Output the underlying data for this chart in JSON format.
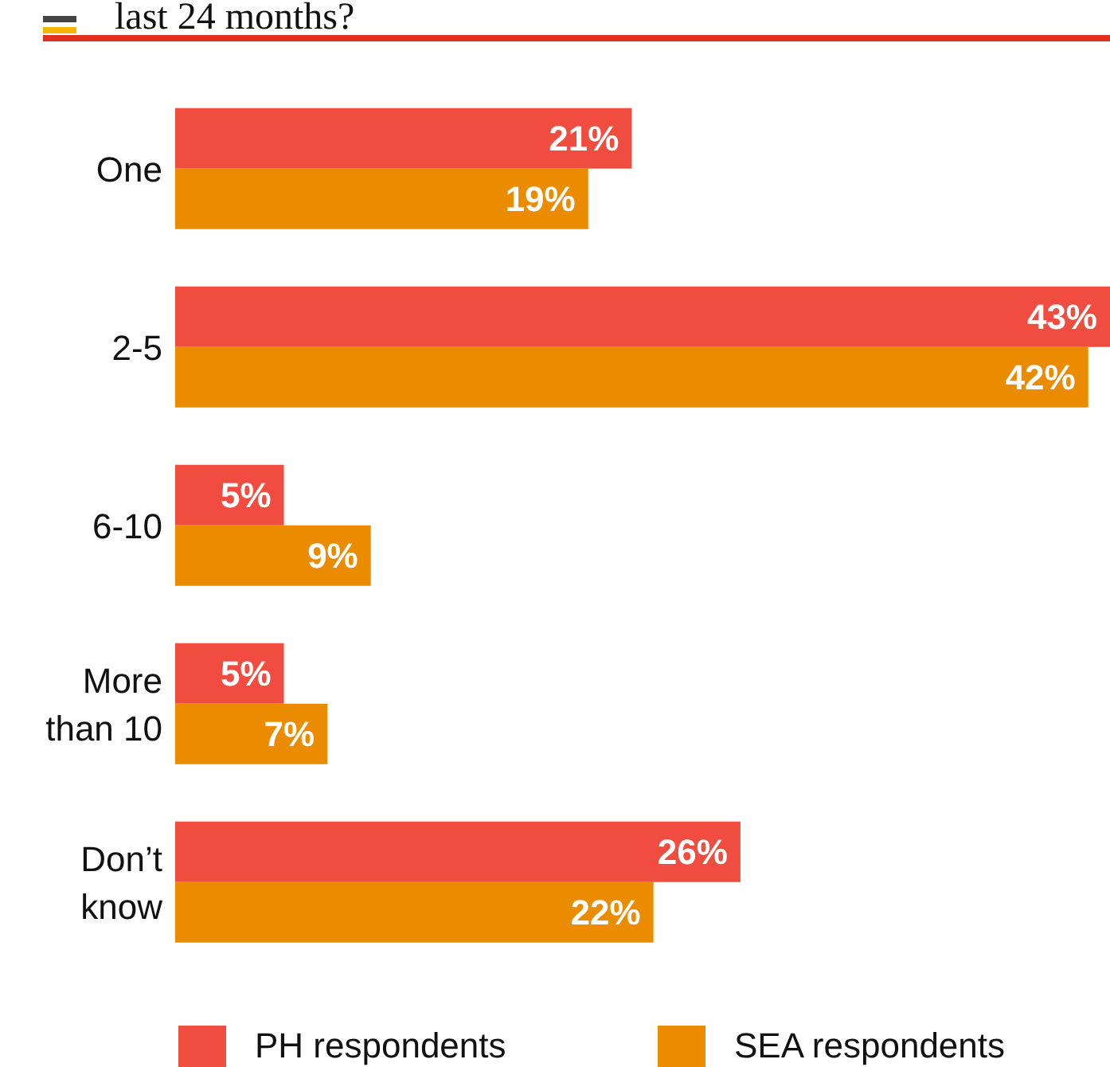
{
  "chart_data": {
    "type": "bar",
    "orientation": "horizontal",
    "title": "last 24 months?",
    "categories": [
      "One",
      "2-5",
      "6-10",
      "More than 10",
      "Don’t know"
    ],
    "series": [
      {
        "name": "PH respondents",
        "color": "#f04c40",
        "values": [
          21,
          43,
          5,
          5,
          26
        ],
        "value_labels": [
          "21%",
          "43%",
          "5%",
          "5%",
          "26%"
        ]
      },
      {
        "name": "SEA respondents",
        "color": "#eb8c00",
        "values": [
          19,
          42,
          9,
          7,
          22
        ],
        "value_labels": [
          "19%",
          "42%",
          "9%",
          "7%",
          "22%"
        ]
      }
    ],
    "legend": "bottom",
    "grid": false
  }
}
